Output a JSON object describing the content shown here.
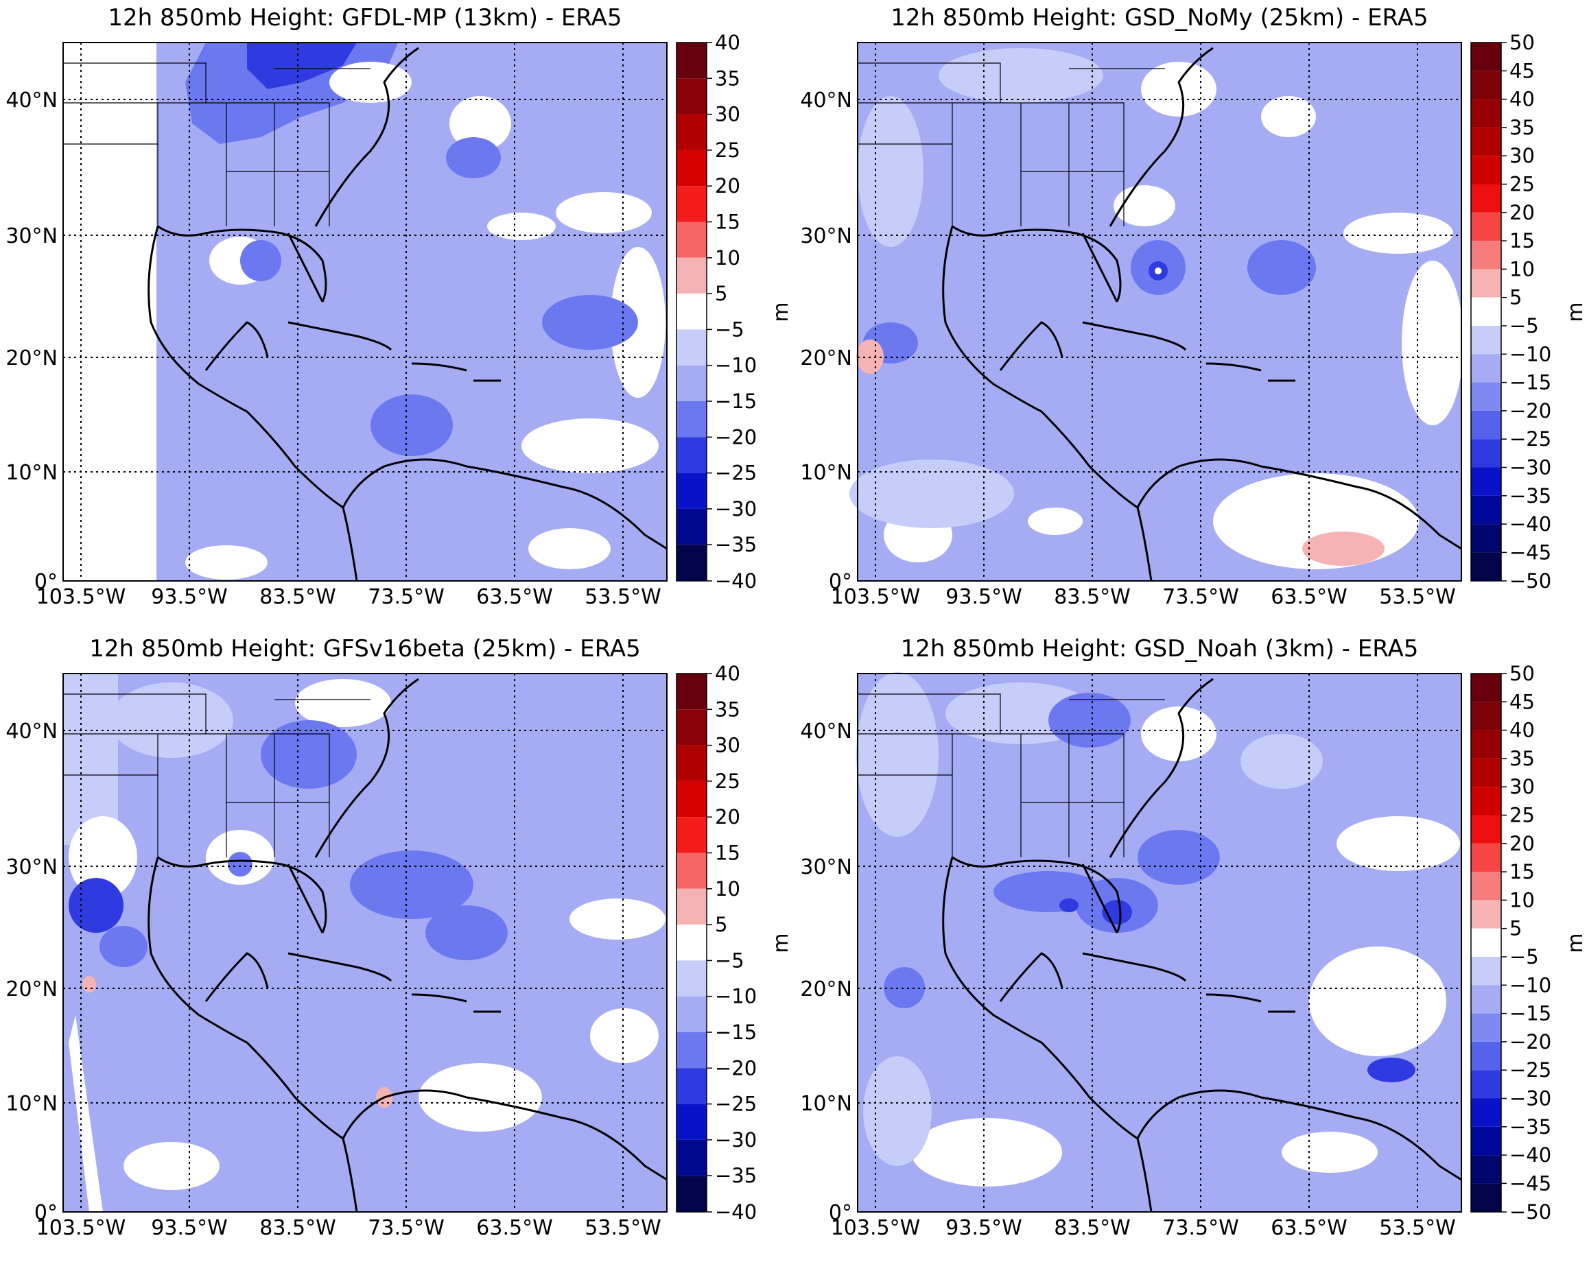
{
  "panels": [
    {
      "title": "12h 850mb Height:  GFDL-MP (13km) - ERA5",
      "colorbar_ticks": [
        "40",
        "35",
        "30",
        "25",
        "20",
        "15",
        "10",
        "5",
        "−5",
        "−10",
        "−15",
        "−20",
        "−25",
        "−30",
        "−35",
        "−40"
      ],
      "unit": "m",
      "lat_labels": [
        "40°N",
        "30°N",
        "20°N",
        "10°N",
        "0°"
      ],
      "lon_labels": [
        "103.5°W",
        "93.5°W",
        "83.5°W",
        "73.5°W",
        "63.5°W",
        "53.5°W"
      ]
    },
    {
      "title": "12h 850mb Height:  GSD_NoMy (25km) - ERA5",
      "colorbar_ticks": [
        "50",
        "45",
        "40",
        "35",
        "30",
        "25",
        "20",
        "15",
        "10",
        "5",
        "−5",
        "−10",
        "−15",
        "−20",
        "−25",
        "−30",
        "−35",
        "−40",
        "−45",
        "−50"
      ],
      "unit": "m",
      "lat_labels": [
        "40°N",
        "30°N",
        "20°N",
        "10°N",
        "0°"
      ],
      "lon_labels": [
        "103.5°W",
        "93.5°W",
        "83.5°W",
        "73.5°W",
        "63.5°W",
        "53.5°W"
      ]
    },
    {
      "title": "12h 850mb Height:  GFSv16beta (25km) - ERA5",
      "colorbar_ticks": [
        "40",
        "35",
        "30",
        "25",
        "20",
        "15",
        "10",
        "5",
        "−5",
        "−10",
        "−15",
        "−20",
        "−25",
        "−30",
        "−35",
        "−40"
      ],
      "unit": "m",
      "lat_labels": [
        "40°N",
        "30°N",
        "20°N",
        "10°N",
        "0°"
      ],
      "lon_labels": [
        "103.5°W",
        "93.5°W",
        "83.5°W",
        "73.5°W",
        "63.5°W",
        "53.5°W"
      ]
    },
    {
      "title": "12h 850mb Height:  GSD_Noah (3km) - ERA5",
      "colorbar_ticks": [
        "50",
        "45",
        "40",
        "35",
        "30",
        "25",
        "20",
        "15",
        "10",
        "5",
        "−5",
        "−10",
        "−15",
        "−20",
        "−25",
        "−30",
        "−35",
        "−40",
        "−45",
        "−50"
      ],
      "unit": "m",
      "lat_labels": [
        "40°N",
        "30°N",
        "20°N",
        "10°N",
        "0°"
      ],
      "lon_labels": [
        "103.5°W",
        "93.5°W",
        "83.5°W",
        "73.5°W",
        "63.5°W",
        "53.5°W"
      ]
    }
  ],
  "colors": {
    "map_base": "#a5acf4",
    "light_blue": "#c7cdf9",
    "medium_blue": "#6b78f0",
    "dark_blue": "#2f3ae0",
    "neutral": "#ffffff",
    "light_red": "#f6b3b3"
  }
}
